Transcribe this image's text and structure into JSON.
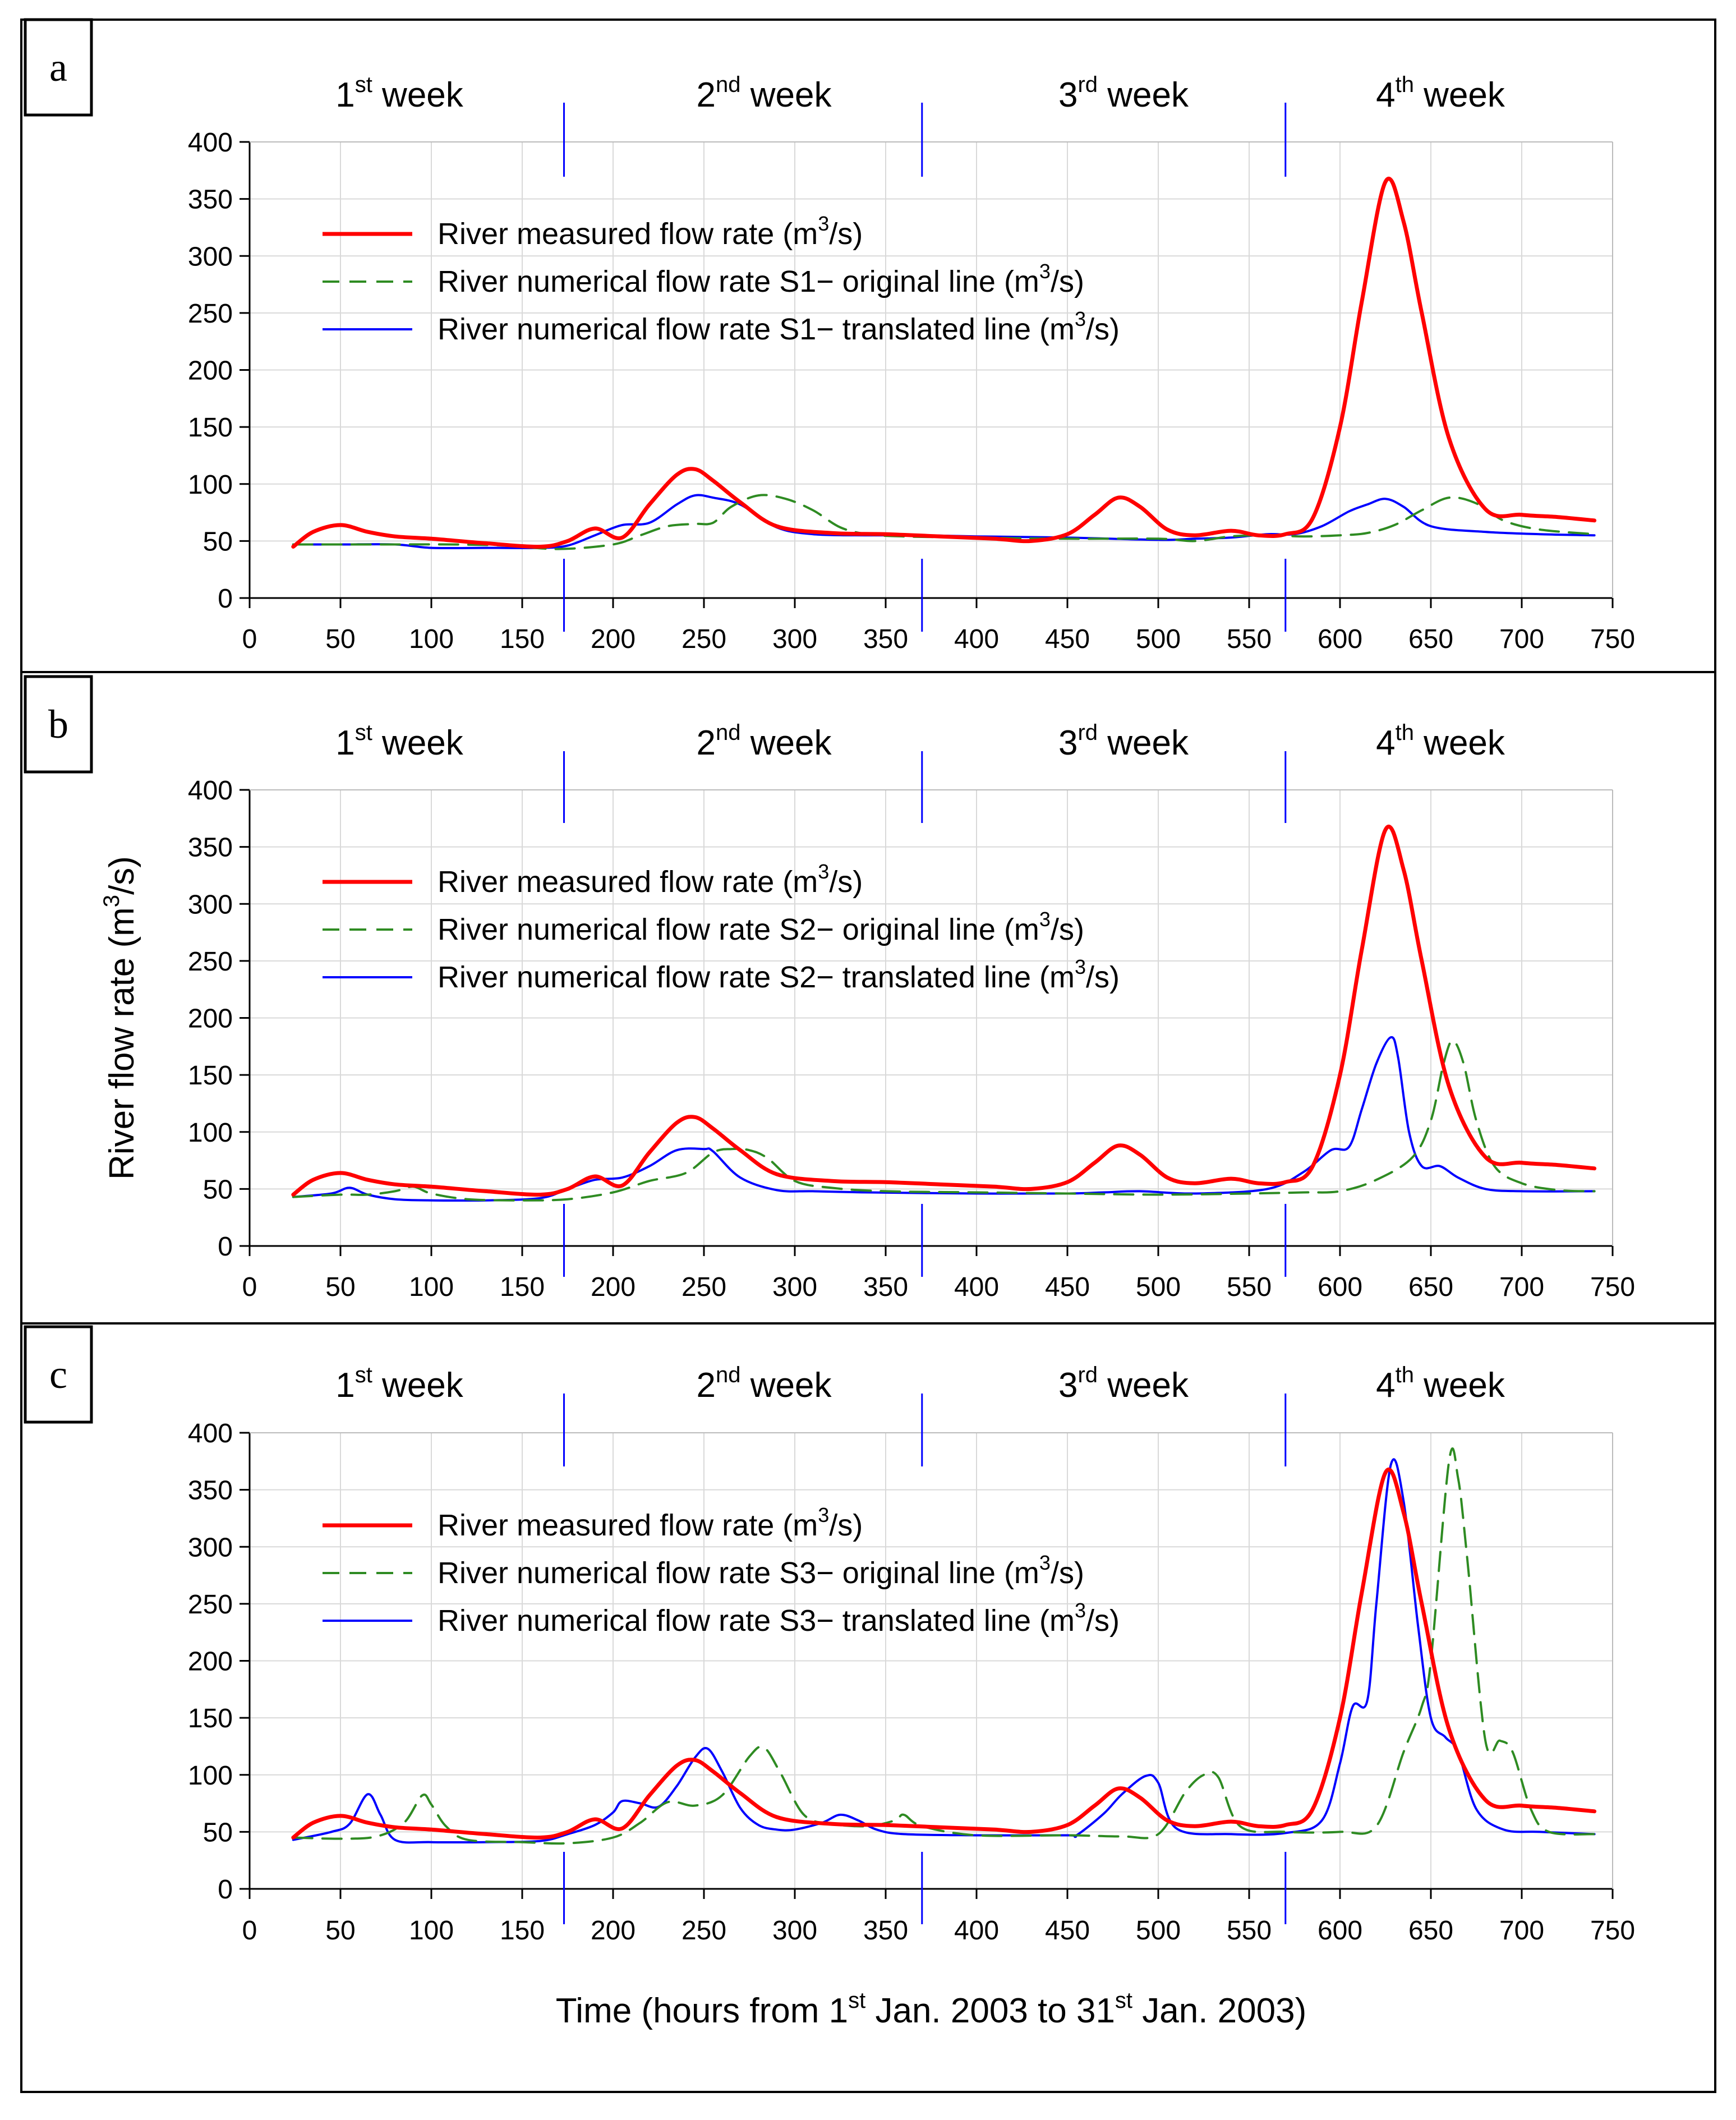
{
  "figure": {
    "ylabel_main": "River flow rate (m",
    "ylabel_sup": "3",
    "ylabel_end": "/s)",
    "xlabel_parts": [
      "Time (hours from 1",
      "st",
      " Jan. 2003   to   31",
      "st",
      " Jan. 2003)"
    ]
  },
  "colors": {
    "measured": "#ff0000",
    "original": "#2e8b22",
    "translated": "#0000ff",
    "grid": "#d9d9d9",
    "week_divider": "#0000ff"
  },
  "weeks": [
    {
      "num": "1",
      "sup": "st",
      "word": " week"
    },
    {
      "num": "2",
      "sup": "nd",
      "word": " week"
    },
    {
      "num": "3",
      "sup": "rd",
      "word": " week"
    },
    {
      "num": "4",
      "sup": "th",
      "word": " week"
    }
  ],
  "chart_data": [
    {
      "type": "line",
      "panel": "a",
      "title": "",
      "xlabel": "",
      "ylabel": "",
      "xlim": [
        0,
        750
      ],
      "ylim": [
        0,
        400
      ],
      "xticks": [
        0,
        50,
        100,
        150,
        200,
        250,
        300,
        350,
        400,
        450,
        500,
        550,
        600,
        650,
        700,
        750
      ],
      "yticks": [
        0,
        50,
        100,
        150,
        200,
        250,
        300,
        350,
        400
      ],
      "week_dividers": [
        173,
        370,
        570
      ],
      "legend": [
        {
          "pre": "River measured flow rate (m",
          "sup": "3",
          "post": "/s)"
        },
        {
          "pre": "River numerical flow rate S1− original line (m",
          "sup": "3",
          "post": "/s)"
        },
        {
          "pre": "River numerical flow rate S1− translated line (m",
          "sup": "3",
          "post": "/s)"
        }
      ],
      "series": [
        {
          "name": "River measured flow rate",
          "style": "measured",
          "x": [
            24,
            35,
            50,
            65,
            80,
            100,
            130,
            160,
            175,
            190,
            205,
            220,
            235,
            245,
            255,
            270,
            290,
            320,
            350,
            380,
            410,
            430,
            450,
            465,
            478,
            490,
            505,
            520,
            540,
            555,
            570,
            585,
            600,
            612,
            625,
            635,
            645,
            660,
            680,
            700,
            720,
            740
          ],
          "y": [
            45,
            58,
            64,
            58,
            54,
            52,
            48,
            45,
            50,
            61,
            53,
            82,
            108,
            113,
            103,
            84,
            63,
            57,
            56,
            54,
            52,
            50,
            56,
            73,
            88,
            80,
            60,
            55,
            59,
            55,
            56,
            70,
            150,
            260,
            365,
            330,
            250,
            140,
            78,
            73,
            71,
            68
          ]
        },
        {
          "name": "River numerical flow rate S1- original line",
          "style": "original",
          "x": [
            24,
            50,
            80,
            110,
            140,
            170,
            200,
            215,
            230,
            245,
            255,
            265,
            280,
            295,
            310,
            325,
            340,
            360,
            400,
            450,
            500,
            520,
            540,
            560,
            580,
            600,
            615,
            630,
            645,
            660,
            675,
            690,
            710,
            740
          ],
          "y": [
            47,
            47,
            47,
            47,
            46,
            43,
            47,
            55,
            63,
            65,
            66,
            80,
            90,
            87,
            77,
            62,
            56,
            54,
            53,
            52,
            52,
            50,
            54,
            55,
            54,
            55,
            57,
            64,
            77,
            88,
            83,
            68,
            60,
            56
          ]
        },
        {
          "name": "River numerical flow rate S1- translated line",
          "style": "translated",
          "x": [
            24,
            50,
            80,
            100,
            130,
            160,
            175,
            190,
            205,
            220,
            235,
            245,
            255,
            270,
            290,
            310,
            340,
            370,
            400,
            450,
            500,
            520,
            540,
            560,
            575,
            590,
            605,
            615,
            625,
            635,
            650,
            680,
            710,
            740
          ],
          "y": [
            47,
            47,
            47,
            44,
            44,
            44,
            46,
            55,
            64,
            66,
            82,
            90,
            88,
            82,
            62,
            56,
            55,
            55,
            54,
            53,
            51,
            52,
            53,
            56,
            56,
            63,
            76,
            82,
            87,
            80,
            63,
            58,
            56,
            55
          ]
        }
      ]
    },
    {
      "type": "line",
      "panel": "b",
      "title": "",
      "xlabel": "",
      "ylabel": "River flow rate (m3/s)",
      "xlim": [
        0,
        750
      ],
      "ylim": [
        0,
        400
      ],
      "xticks": [
        0,
        50,
        100,
        150,
        200,
        250,
        300,
        350,
        400,
        450,
        500,
        550,
        600,
        650,
        700,
        750
      ],
      "yticks": [
        0,
        50,
        100,
        150,
        200,
        250,
        300,
        350,
        400
      ],
      "week_dividers": [
        173,
        370,
        570
      ],
      "legend": [
        {
          "pre": "River measured flow rate (m",
          "sup": "3",
          "post": "/s)"
        },
        {
          "pre": "River numerical flow rate S2− original line (m",
          "sup": "3",
          "post": "/s)"
        },
        {
          "pre": "River numerical flow rate S2− translated line (m",
          "sup": "3",
          "post": "/s)"
        }
      ],
      "series": [
        {
          "name": "River measured flow rate",
          "style": "measured",
          "x": [
            24,
            35,
            50,
            65,
            80,
            100,
            130,
            160,
            175,
            190,
            205,
            220,
            235,
            245,
            255,
            270,
            290,
            320,
            350,
            380,
            410,
            430,
            450,
            465,
            478,
            490,
            505,
            520,
            540,
            555,
            570,
            585,
            600,
            612,
            625,
            635,
            645,
            660,
            680,
            700,
            720,
            740
          ],
          "y": [
            45,
            58,
            64,
            58,
            54,
            52,
            48,
            45,
            50,
            61,
            53,
            82,
            108,
            113,
            103,
            84,
            63,
            57,
            56,
            54,
            52,
            50,
            56,
            73,
            88,
            80,
            60,
            55,
            59,
            55,
            56,
            70,
            150,
            260,
            365,
            330,
            250,
            140,
            78,
            73,
            71,
            68
          ]
        },
        {
          "name": "River numerical flow rate S2- original line",
          "style": "original",
          "x": [
            24,
            50,
            65,
            80,
            90,
            100,
            120,
            150,
            175,
            200,
            220,
            240,
            255,
            265,
            275,
            285,
            300,
            320,
            350,
            400,
            450,
            500,
            550,
            580,
            600,
            620,
            640,
            650,
            657,
            662,
            668,
            675,
            685,
            700,
            720,
            740
          ],
          "y": [
            43,
            45,
            45,
            48,
            52,
            46,
            41,
            40,
            41,
            47,
            57,
            64,
            82,
            85,
            84,
            77,
            57,
            51,
            48,
            47,
            46,
            45,
            46,
            47,
            48,
            58,
            78,
            110,
            160,
            180,
            160,
            110,
            70,
            55,
            49,
            48
          ]
        },
        {
          "name": "River numerical flow rate S2- translated line",
          "style": "translated",
          "x": [
            24,
            45,
            55,
            65,
            80,
            100,
            130,
            160,
            175,
            190,
            205,
            220,
            235,
            250,
            255,
            270,
            290,
            310,
            340,
            400,
            450,
            470,
            490,
            520,
            560,
            580,
            595,
            605,
            612,
            620,
            628,
            632,
            638,
            645,
            655,
            665,
            680,
            700,
            740
          ],
          "y": [
            43,
            46,
            51,
            45,
            41,
            40,
            40,
            42,
            50,
            58,
            60,
            70,
            84,
            85,
            83,
            60,
            49,
            48,
            47,
            46,
            46,
            47,
            48,
            46,
            50,
            65,
            84,
            87,
            120,
            160,
            183,
            165,
            100,
            70,
            70,
            60,
            50,
            48,
            48
          ]
        }
      ]
    },
    {
      "type": "line",
      "panel": "c",
      "title": "",
      "xlabel": "Time (hours from 1st Jan. 2003 to 31st Jan. 2003)",
      "ylabel": "",
      "xlim": [
        0,
        750
      ],
      "ylim": [
        0,
        400
      ],
      "xticks": [
        0,
        50,
        100,
        150,
        200,
        250,
        300,
        350,
        400,
        450,
        500,
        550,
        600,
        650,
        700,
        750
      ],
      "yticks": [
        0,
        50,
        100,
        150,
        200,
        250,
        300,
        350,
        400
      ],
      "week_dividers": [
        173,
        370,
        570
      ],
      "legend": [
        {
          "pre": "River measured flow rate (m",
          "sup": "3",
          "post": "/s)"
        },
        {
          "pre": "River numerical flow rate S3− original line (m",
          "sup": "3",
          "post": "/s)"
        },
        {
          "pre": "River numerical flow rate S3− translated line (m",
          "sup": "3",
          "post": "/s)"
        }
      ],
      "series": [
        {
          "name": "River measured flow rate",
          "style": "measured",
          "x": [
            24,
            35,
            50,
            65,
            80,
            100,
            130,
            160,
            175,
            190,
            205,
            220,
            235,
            245,
            255,
            270,
            290,
            320,
            350,
            380,
            410,
            430,
            450,
            465,
            478,
            490,
            505,
            520,
            540,
            555,
            570,
            585,
            600,
            612,
            625,
            635,
            645,
            660,
            680,
            700,
            720,
            740
          ],
          "y": [
            45,
            58,
            64,
            58,
            54,
            52,
            48,
            45,
            50,
            61,
            53,
            82,
            108,
            113,
            103,
            84,
            63,
            57,
            56,
            54,
            52,
            50,
            56,
            73,
            88,
            80,
            60,
            55,
            59,
            55,
            56,
            70,
            150,
            260,
            365,
            330,
            250,
            140,
            78,
            73,
            71,
            68
          ]
        },
        {
          "name": "River numerical flow rate S3- original line",
          "style": "original",
          "x": [
            24,
            50,
            70,
            85,
            95,
            100,
            108,
            120,
            150,
            175,
            200,
            215,
            230,
            245,
            260,
            275,
            283,
            292,
            305,
            320,
            340,
            355,
            360,
            370,
            400,
            450,
            480,
            500,
            515,
            525,
            533,
            545,
            570,
            600,
            620,
            635,
            645,
            650,
            660,
            665,
            670,
            680,
            688,
            695,
            705,
            715,
            740
          ],
          "y": [
            45,
            44,
            46,
            58,
            82,
            74,
            55,
            43,
            41,
            40,
            45,
            58,
            76,
            73,
            82,
            116,
            124,
            102,
            65,
            57,
            55,
            60,
            65,
            55,
            47,
            47,
            46,
            48,
            85,
            100,
            98,
            55,
            50,
            50,
            55,
            120,
            160,
            200,
            375,
            360,
            290,
            130,
            130,
            120,
            70,
            50,
            48
          ]
        },
        {
          "name": "River numerical flow rate S3- translated line",
          "style": "translated",
          "x": [
            24,
            45,
            55,
            65,
            72,
            80,
            100,
            130,
            160,
            175,
            190,
            200,
            205,
            215,
            225,
            235,
            245,
            252,
            260,
            270,
            280,
            290,
            300,
            315,
            325,
            335,
            345,
            360,
            400,
            450,
            455,
            470,
            480,
            493,
            500,
            510,
            540,
            570,
            590,
            600,
            607,
            615,
            620,
            628,
            635,
            643,
            650,
            658,
            665,
            675,
            690,
            710,
            740
          ],
          "y": [
            43,
            50,
            57,
            83,
            65,
            43,
            41,
            41,
            42,
            48,
            56,
            67,
            77,
            75,
            72,
            90,
            115,
            123,
            103,
            71,
            56,
            52,
            52,
            58,
            65,
            60,
            52,
            48,
            47,
            47,
            47,
            66,
            83,
            99,
            93,
            53,
            48,
            49,
            60,
            110,
            160,
            165,
            250,
            372,
            340,
            230,
            150,
            133,
            120,
            70,
            52,
            50,
            48
          ]
        }
      ]
    }
  ]
}
